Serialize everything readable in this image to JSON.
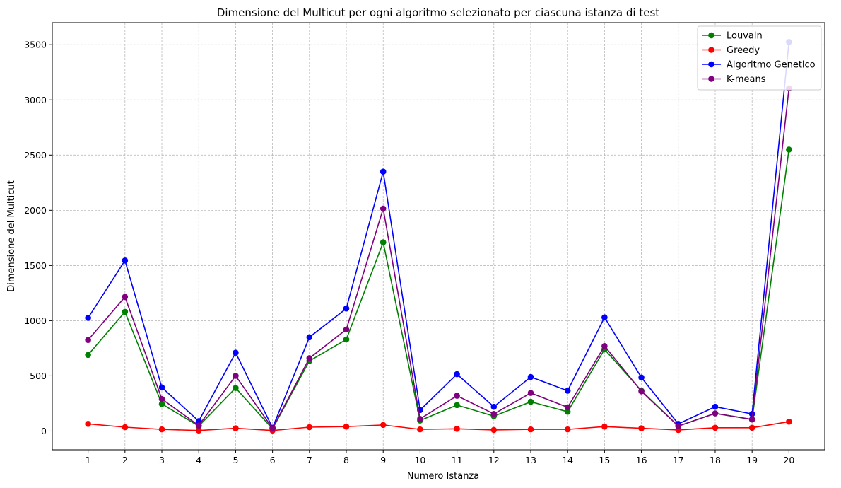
{
  "chart_data": {
    "type": "line",
    "title": "Dimensione del Multicut per ogni algoritmo selezionato per ciascuna istanza di test",
    "xlabel": "Numero Istanza",
    "ylabel": "Dimensione del Multicut",
    "x": [
      1,
      2,
      3,
      4,
      5,
      6,
      7,
      8,
      9,
      10,
      11,
      12,
      13,
      14,
      15,
      16,
      17,
      18,
      19,
      20
    ],
    "xlim": [
      0.03,
      20.97
    ],
    "ylim": [
      -170,
      3700
    ],
    "yticks": [
      0,
      500,
      1000,
      1500,
      2000,
      2500,
      3000,
      3500
    ],
    "grid": true,
    "legend_position": "top-right",
    "series": [
      {
        "name": "Louvain",
        "color": "#008000",
        "values": [
          690,
          1080,
          245,
          45,
          390,
          20,
          635,
          830,
          1710,
          95,
          235,
          135,
          265,
          175,
          740,
          365,
          45,
          160,
          105,
          2550
        ]
      },
      {
        "name": "Greedy",
        "color": "#ff0000",
        "values": [
          65,
          35,
          15,
          5,
          25,
          5,
          35,
          40,
          55,
          15,
          20,
          10,
          15,
          15,
          40,
          25,
          10,
          30,
          30,
          85
        ]
      },
      {
        "name": "Algoritmo Genetico",
        "color": "#0000ff",
        "values": [
          1025,
          1545,
          395,
          90,
          710,
          30,
          850,
          1110,
          2350,
          190,
          515,
          220,
          490,
          365,
          1030,
          485,
          65,
          220,
          155,
          3525
        ]
      },
      {
        "name": "K-means",
        "color": "#800080",
        "values": [
          825,
          1215,
          290,
          50,
          500,
          25,
          660,
          920,
          2015,
          110,
          320,
          155,
          345,
          215,
          770,
          360,
          45,
          160,
          105,
          3105
        ]
      }
    ]
  }
}
